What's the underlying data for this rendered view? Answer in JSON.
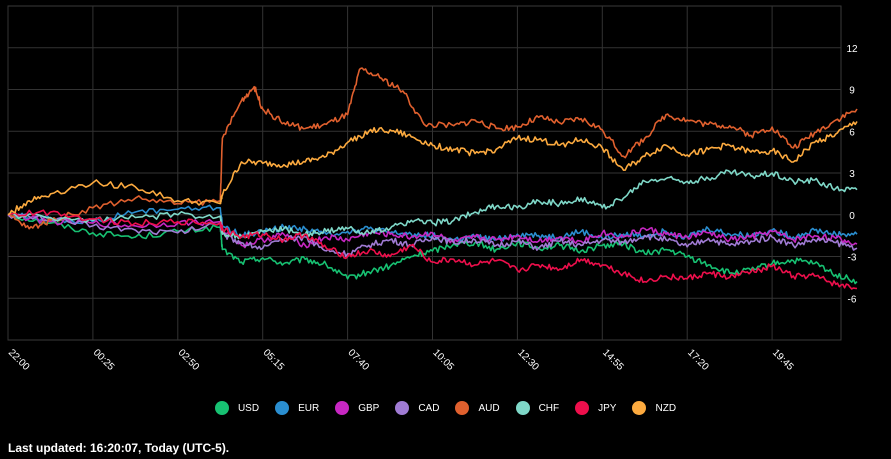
{
  "chart_data": {
    "type": "line",
    "x_ticks": [
      "22:00",
      "00:25",
      "02:50",
      "05:15",
      "07:40",
      "10:05",
      "12:30",
      "14:55",
      "17:20",
      "19:45"
    ],
    "y_ticks": [
      12,
      9,
      6,
      3,
      0,
      -3,
      -6
    ],
    "ylim": [
      -9,
      15
    ],
    "grid": true,
    "legend_position": "bottom",
    "series": [
      {
        "name": "USD",
        "color": "#17c172",
        "points": [
          [
            0,
            0
          ],
          [
            1,
            -0.6
          ],
          [
            2,
            -1.3
          ],
          [
            3,
            -1.6
          ],
          [
            4,
            -1.2
          ],
          [
            5,
            -0.9
          ],
          [
            5.05,
            -2.5
          ],
          [
            5.5,
            -3.4
          ],
          [
            6,
            -3.1
          ],
          [
            6.5,
            -3.5
          ],
          [
            7,
            -3.2
          ],
          [
            7.5,
            -3.6
          ],
          [
            8,
            -4.6
          ],
          [
            8.5,
            -4.1
          ],
          [
            9,
            -3.7
          ],
          [
            9.5,
            -3.0
          ],
          [
            10,
            -2.6
          ],
          [
            10.5,
            -2.1
          ],
          [
            11,
            -2.0
          ],
          [
            11.5,
            -2.5
          ],
          [
            12,
            -2.0
          ],
          [
            12.5,
            -2.4
          ],
          [
            13,
            -2.2
          ],
          [
            13.5,
            -2.6
          ],
          [
            14,
            -2.2
          ],
          [
            14.5,
            -2.1
          ],
          [
            15,
            -2.8
          ],
          [
            15.5,
            -2.5
          ],
          [
            16,
            -3.0
          ],
          [
            16.5,
            -3.6
          ],
          [
            17,
            -4.2
          ],
          [
            17.5,
            -4.0
          ],
          [
            18,
            -3.5
          ],
          [
            18.5,
            -3.3
          ],
          [
            19,
            -3.5
          ],
          [
            19.5,
            -4.3
          ],
          [
            20,
            -4.8
          ]
        ]
      },
      {
        "name": "EUR",
        "color": "#2a8ed0",
        "points": [
          [
            0,
            0
          ],
          [
            1,
            -0.3
          ],
          [
            2,
            -0.5
          ],
          [
            3,
            0.2
          ],
          [
            4,
            0.4
          ],
          [
            5,
            0.5
          ],
          [
            5.05,
            -0.8
          ],
          [
            5.5,
            -1.5
          ],
          [
            6,
            -1.2
          ],
          [
            6.5,
            -0.9
          ],
          [
            7,
            -1.0
          ],
          [
            7.5,
            -1.4
          ],
          [
            8,
            -1.2
          ],
          [
            8.5,
            -1.0
          ],
          [
            9,
            -1.3
          ],
          [
            9.5,
            -1.4
          ],
          [
            10,
            -1.5
          ],
          [
            10.5,
            -1.8
          ],
          [
            11,
            -1.6
          ],
          [
            11.5,
            -1.8
          ],
          [
            12,
            -1.4
          ],
          [
            12.5,
            -1.5
          ],
          [
            13,
            -1.6
          ],
          [
            13.5,
            -1.2
          ],
          [
            14,
            -1.7
          ],
          [
            14.5,
            -1.4
          ],
          [
            15,
            -1.5
          ],
          [
            15.5,
            -1.2
          ],
          [
            16,
            -1.6
          ],
          [
            16.5,
            -1.0
          ],
          [
            17,
            -1.4
          ],
          [
            17.5,
            -1.5
          ],
          [
            18,
            -1.1
          ],
          [
            18.5,
            -1.6
          ],
          [
            19,
            -1.1
          ],
          [
            19.5,
            -1.4
          ],
          [
            20,
            -1.4
          ]
        ]
      },
      {
        "name": "GBP",
        "color": "#c727c2",
        "points": [
          [
            0,
            0
          ],
          [
            1,
            -0.5
          ],
          [
            2,
            -0.6
          ],
          [
            3,
            -0.8
          ],
          [
            4,
            -0.6
          ],
          [
            5,
            -0.5
          ],
          [
            5.05,
            -1.0
          ],
          [
            5.5,
            -2.2
          ],
          [
            6,
            -1.8
          ],
          [
            6.5,
            -1.4
          ],
          [
            7,
            -2.2
          ],
          [
            7.5,
            -1.6
          ],
          [
            8,
            -1.8
          ],
          [
            8.5,
            -1.3
          ],
          [
            9,
            -1.4
          ],
          [
            9.5,
            -1.6
          ],
          [
            10,
            -1.3
          ],
          [
            10.5,
            -2.0
          ],
          [
            11,
            -1.6
          ],
          [
            11.5,
            -1.8
          ],
          [
            12,
            -1.5
          ],
          [
            12.5,
            -1.9
          ],
          [
            13,
            -1.6
          ],
          [
            13.5,
            -1.9
          ],
          [
            14,
            -1.3
          ],
          [
            14.5,
            -1.6
          ],
          [
            15,
            -1.0
          ],
          [
            15.5,
            -1.4
          ],
          [
            16,
            -1.6
          ],
          [
            16.5,
            -1.3
          ],
          [
            17,
            -1.8
          ],
          [
            17.5,
            -1.6
          ],
          [
            18,
            -1.2
          ],
          [
            18.5,
            -1.8
          ],
          [
            19,
            -1.5
          ],
          [
            19.5,
            -1.7
          ],
          [
            20,
            -2.1
          ]
        ]
      },
      {
        "name": "CAD",
        "color": "#a07bd4",
        "points": [
          [
            0,
            0
          ],
          [
            1,
            -0.3
          ],
          [
            2,
            -0.8
          ],
          [
            3,
            -1.1
          ],
          [
            4,
            -1.3
          ],
          [
            5,
            -0.6
          ],
          [
            5.05,
            -1.4
          ],
          [
            5.5,
            -2.0
          ],
          [
            6,
            -2.4
          ],
          [
            6.5,
            -1.8
          ],
          [
            7,
            -1.6
          ],
          [
            7.5,
            -2.6
          ],
          [
            8,
            -2.8
          ],
          [
            8.5,
            -2.2
          ],
          [
            9,
            -1.8
          ],
          [
            9.5,
            -2.2
          ],
          [
            10,
            -1.6
          ],
          [
            10.5,
            -2.0
          ],
          [
            11,
            -1.8
          ],
          [
            11.5,
            -2.2
          ],
          [
            12,
            -1.9
          ],
          [
            12.5,
            -2.4
          ],
          [
            13,
            -1.9
          ],
          [
            13.5,
            -2.2
          ],
          [
            14,
            -1.8
          ],
          [
            14.5,
            -2.0
          ],
          [
            15,
            -1.5
          ],
          [
            15.5,
            -1.8
          ],
          [
            16,
            -2.3
          ],
          [
            16.5,
            -1.7
          ],
          [
            17,
            -2.2
          ],
          [
            17.5,
            -1.9
          ],
          [
            18,
            -1.6
          ],
          [
            18.5,
            -2.2
          ],
          [
            19,
            -1.8
          ],
          [
            19.5,
            -2.0
          ],
          [
            20,
            -2.4
          ]
        ]
      },
      {
        "name": "AUD",
        "color": "#e0602e",
        "points": [
          [
            0,
            0
          ],
          [
            0.5,
            -1.0
          ],
          [
            1,
            -0.4
          ],
          [
            2,
            0.5
          ],
          [
            3,
            1.2
          ],
          [
            4,
            0.8
          ],
          [
            5,
            1.0
          ],
          [
            5.05,
            5.5
          ],
          [
            5.5,
            8.2
          ],
          [
            5.8,
            9.2
          ],
          [
            6,
            7.6
          ],
          [
            6.5,
            6.6
          ],
          [
            7,
            6.2
          ],
          [
            7.5,
            6.5
          ],
          [
            8,
            7.2
          ],
          [
            8.3,
            10.5
          ],
          [
            8.8,
            9.8
          ],
          [
            9.3,
            8.9
          ],
          [
            9.8,
            6.5
          ],
          [
            10.5,
            6.4
          ],
          [
            11,
            6.8
          ],
          [
            11.5,
            6.2
          ],
          [
            12,
            6.3
          ],
          [
            12.5,
            7.0
          ],
          [
            13,
            6.6
          ],
          [
            13.5,
            6.9
          ],
          [
            14,
            6.1
          ],
          [
            14.5,
            4.2
          ],
          [
            15,
            5.5
          ],
          [
            15.5,
            7.2
          ],
          [
            16,
            6.8
          ],
          [
            16.5,
            6.5
          ],
          [
            17,
            6.4
          ],
          [
            17.5,
            5.7
          ],
          [
            18,
            6.3
          ],
          [
            18.5,
            4.8
          ],
          [
            19,
            5.9
          ],
          [
            19.5,
            6.8
          ],
          [
            20,
            7.6
          ]
        ]
      },
      {
        "name": "CHF",
        "color": "#7fd8c8",
        "points": [
          [
            0,
            0
          ],
          [
            1,
            -0.2
          ],
          [
            2,
            -0.4
          ],
          [
            3,
            -0.2
          ],
          [
            4,
            0.0
          ],
          [
            5,
            -0.1
          ],
          [
            5.05,
            -1.3
          ],
          [
            5.5,
            -1.6
          ],
          [
            6,
            -1.2
          ],
          [
            6.5,
            -1.0
          ],
          [
            7,
            -1.4
          ],
          [
            7.5,
            -1.2
          ],
          [
            8,
            -1.0
          ],
          [
            8.5,
            -1.3
          ],
          [
            9,
            -1.0
          ],
          [
            9.5,
            -0.4
          ],
          [
            10,
            -0.6
          ],
          [
            10.5,
            -0.4
          ],
          [
            11,
            0.2
          ],
          [
            11.5,
            0.6
          ],
          [
            12,
            0.5
          ],
          [
            12.5,
            1.0
          ],
          [
            13,
            0.8
          ],
          [
            13.5,
            1.2
          ],
          [
            14,
            0.5
          ],
          [
            14.5,
            1.2
          ],
          [
            15,
            2.4
          ],
          [
            15.5,
            2.6
          ],
          [
            16,
            2.4
          ],
          [
            16.5,
            2.6
          ],
          [
            17,
            3.1
          ],
          [
            17.5,
            2.8
          ],
          [
            18,
            3.0
          ],
          [
            18.5,
            2.4
          ],
          [
            19,
            2.5
          ],
          [
            19.5,
            1.9
          ],
          [
            20,
            1.8
          ]
        ]
      },
      {
        "name": "JPY",
        "color": "#ee0f4c",
        "points": [
          [
            0,
            0
          ],
          [
            1,
            0.2
          ],
          [
            2,
            -0.3
          ],
          [
            3,
            -0.6
          ],
          [
            4,
            -0.5
          ],
          [
            5,
            -0.6
          ],
          [
            5.05,
            -1.0
          ],
          [
            5.5,
            -1.6
          ],
          [
            6,
            -1.4
          ],
          [
            6.5,
            -1.8
          ],
          [
            7,
            -1.4
          ],
          [
            7.5,
            -2.4
          ],
          [
            8,
            -3.0
          ],
          [
            8.5,
            -2.6
          ],
          [
            9,
            -3.0
          ],
          [
            9.5,
            -2.2
          ],
          [
            10,
            -3.4
          ],
          [
            10.5,
            -3.2
          ],
          [
            11,
            -3.6
          ],
          [
            11.5,
            -3.3
          ],
          [
            12,
            -4.0
          ],
          [
            12.5,
            -3.6
          ],
          [
            13,
            -3.9
          ],
          [
            13.5,
            -3.2
          ],
          [
            14,
            -3.6
          ],
          [
            14.5,
            -4.2
          ],
          [
            15,
            -4.8
          ],
          [
            15.5,
            -4.4
          ],
          [
            16,
            -4.6
          ],
          [
            16.5,
            -4.2
          ],
          [
            17,
            -4.5
          ],
          [
            17.5,
            -4.1
          ],
          [
            18,
            -3.7
          ],
          [
            18.5,
            -4.4
          ],
          [
            19,
            -4.4
          ],
          [
            19.5,
            -5.0
          ],
          [
            20,
            -5.3
          ]
        ]
      },
      {
        "name": "NZD",
        "color": "#fcaa3f",
        "points": [
          [
            0,
            0
          ],
          [
            0.5,
            1.0
          ],
          [
            1,
            1.5
          ],
          [
            2,
            2.3
          ],
          [
            3,
            2.0
          ],
          [
            4,
            1.0
          ],
          [
            5,
            0.8
          ],
          [
            5.05,
            1.4
          ],
          [
            5.5,
            3.8
          ],
          [
            6,
            3.7
          ],
          [
            6.5,
            3.6
          ],
          [
            7,
            3.8
          ],
          [
            7.5,
            4.2
          ],
          [
            8,
            5.2
          ],
          [
            8.5,
            6.0
          ],
          [
            9,
            6.1
          ],
          [
            9.5,
            5.6
          ],
          [
            10,
            5.0
          ],
          [
            10.5,
            4.7
          ],
          [
            11,
            4.4
          ],
          [
            11.5,
            4.7
          ],
          [
            12,
            5.5
          ],
          [
            12.5,
            5.4
          ],
          [
            13,
            5.0
          ],
          [
            13.5,
            5.4
          ],
          [
            14,
            4.8
          ],
          [
            14.5,
            3.2
          ],
          [
            15,
            4.2
          ],
          [
            15.5,
            5.0
          ],
          [
            16,
            4.3
          ],
          [
            16.5,
            4.7
          ],
          [
            17,
            5.0
          ],
          [
            17.5,
            4.5
          ],
          [
            18,
            4.6
          ],
          [
            18.5,
            3.8
          ],
          [
            19,
            5.2
          ],
          [
            19.5,
            5.8
          ],
          [
            20,
            6.7
          ]
        ]
      }
    ]
  },
  "footer": {
    "last_updated": "Last updated: 16:20:07, Today (UTC-5)."
  }
}
